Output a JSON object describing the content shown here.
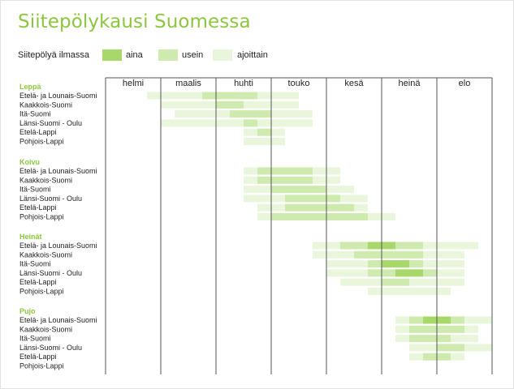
{
  "title": "Siitepölykausi Suomessa",
  "legend": {
    "title": "Siitepölyä ilmassa",
    "items": [
      {
        "label": "aina",
        "color": "#a9d86a"
      },
      {
        "label": "usein",
        "color": "#cfeaae"
      },
      {
        "label": "ajoittain",
        "color": "#eaf6dc"
      }
    ]
  },
  "colors": {
    "accent": "#8cc63f",
    "aina": "#a9d86a",
    "usein": "#cfeaae",
    "ajoittain": "#eaf6dc",
    "grid": "#555555"
  },
  "chart_data": {
    "type": "table",
    "months": [
      "helmi",
      "maalis",
      "huhti",
      "touko",
      "kesä",
      "heinä",
      "elo"
    ],
    "x_unit": "month index (0 = start of helmi, 7 = end of elo)",
    "groups": [
      {
        "name": "Leppä",
        "regions": [
          {
            "label": "Etelä- ja Lounais-Suomi",
            "ajoittain": [
              [
                0.75,
                3.5
              ]
            ],
            "usein": [
              [
                1.75,
                2.75
              ]
            ],
            "aina": []
          },
          {
            "label": "Kaakkois-Suomi",
            "ajoittain": [
              [
                1.0,
                3.5
              ]
            ],
            "usein": [
              [
                2.0,
                2.5
              ]
            ],
            "aina": []
          },
          {
            "label": "Itä-Suomi",
            "ajoittain": [
              [
                1.25,
                3.75
              ]
            ],
            "usein": [
              [
                2.25,
                3.0
              ]
            ],
            "aina": []
          },
          {
            "label": "Länsi-Suomi - Oulu",
            "ajoittain": [
              [
                1.0,
                3.75
              ]
            ],
            "usein": [
              [
                2.5,
                2.75
              ]
            ],
            "aina": []
          },
          {
            "label": "Etelä-Lappi",
            "ajoittain": [
              [
                2.5,
                3.25
              ]
            ],
            "usein": [
              [
                2.75,
                3.0
              ]
            ],
            "aina": []
          },
          {
            "label": "Pohjois-Lappi",
            "ajoittain": [
              [
                2.5,
                3.25
              ]
            ],
            "usein": [],
            "aina": []
          }
        ]
      },
      {
        "name": "Koivu",
        "regions": [
          {
            "label": "Etelä- ja Lounais-Suomi",
            "ajoittain": [
              [
                2.5,
                4.25
              ]
            ],
            "usein": [
              [
                2.75,
                3.75
              ]
            ],
            "aina": []
          },
          {
            "label": "Kaakkois-Suomi",
            "ajoittain": [
              [
                2.5,
                4.25
              ]
            ],
            "usein": [
              [
                2.75,
                3.75
              ]
            ],
            "aina": []
          },
          {
            "label": "Itä-Suomi",
            "ajoittain": [
              [
                2.5,
                4.5
              ]
            ],
            "usein": [
              [
                3.0,
                4.0
              ]
            ],
            "aina": []
          },
          {
            "label": "Länsi-Suomi - Oulu",
            "ajoittain": [
              [
                2.5,
                4.75
              ]
            ],
            "usein": [
              [
                3.25,
                4.25
              ]
            ],
            "aina": []
          },
          {
            "label": "Etelä-Lappi",
            "ajoittain": [
              [
                2.75,
                4.75
              ]
            ],
            "usein": [
              [
                3.25,
                4.5
              ]
            ],
            "aina": []
          },
          {
            "label": "Pohjois-Lappi",
            "ajoittain": [
              [
                2.75,
                5.25
              ]
            ],
            "usein": [
              [
                3.0,
                4.75
              ]
            ],
            "aina": []
          }
        ]
      },
      {
        "name": "Heinät",
        "regions": [
          {
            "label": "Etelä- ja Lounais-Suomi",
            "ajoittain": [
              [
                3.75,
                6.75
              ]
            ],
            "usein": [
              [
                4.25,
                5.75
              ]
            ],
            "aina": [
              [
                4.75,
                5.25
              ]
            ]
          },
          {
            "label": "Kaakkois-Suomi",
            "ajoittain": [
              [
                3.75,
                6.5
              ]
            ],
            "usein": [
              [
                4.5,
                5.75
              ]
            ],
            "aina": []
          },
          {
            "label": "Itä-Suomi",
            "ajoittain": [
              [
                4.0,
                6.5
              ]
            ],
            "usein": [
              [
                4.75,
                5.75
              ]
            ],
            "aina": [
              [
                5.0,
                5.5
              ]
            ]
          },
          {
            "label": "Länsi-Suomi - Oulu",
            "ajoittain": [
              [
                4.0,
                6.5
              ]
            ],
            "usein": [
              [
                4.75,
                6.0
              ]
            ],
            "aina": [
              [
                5.25,
                5.75
              ]
            ]
          },
          {
            "label": "Etelä-Lappi",
            "ajoittain": [
              [
                4.25,
                6.5
              ]
            ],
            "usein": [
              [
                5.0,
                5.5
              ]
            ],
            "aina": []
          },
          {
            "label": "Pohjois-Lappi",
            "ajoittain": [
              [
                4.75,
                6.25
              ]
            ],
            "usein": [],
            "aina": []
          }
        ]
      },
      {
        "name": "Pujo",
        "regions": [
          {
            "label": "Etelä- ja Lounais-Suomi",
            "ajoittain": [
              [
                5.25,
                7.0
              ]
            ],
            "usein": [
              [
                5.5,
                6.5
              ]
            ],
            "aina": [
              [
                5.75,
                6.25
              ]
            ]
          },
          {
            "label": "Kaakkois-Suomi",
            "ajoittain": [
              [
                5.25,
                6.75
              ]
            ],
            "usein": [
              [
                5.5,
                6.5
              ]
            ],
            "aina": []
          },
          {
            "label": "Itä-Suomi",
            "ajoittain": [
              [
                5.25,
                6.75
              ]
            ],
            "usein": [
              [
                5.5,
                6.25
              ]
            ],
            "aina": []
          },
          {
            "label": "Länsi-Suomi - Oulu",
            "ajoittain": [
              [
                5.5,
                7.0
              ]
            ],
            "usein": [
              [
                6.0,
                6.5
              ]
            ],
            "aina": []
          },
          {
            "label": "Etelä-Lappi",
            "ajoittain": [
              [
                5.5,
                6.5
              ]
            ],
            "usein": [
              [
                5.75,
                6.25
              ]
            ],
            "aina": []
          },
          {
            "label": "Pohjois-Lappi",
            "ajoittain": [],
            "usein": [],
            "aina": []
          }
        ]
      }
    ]
  }
}
